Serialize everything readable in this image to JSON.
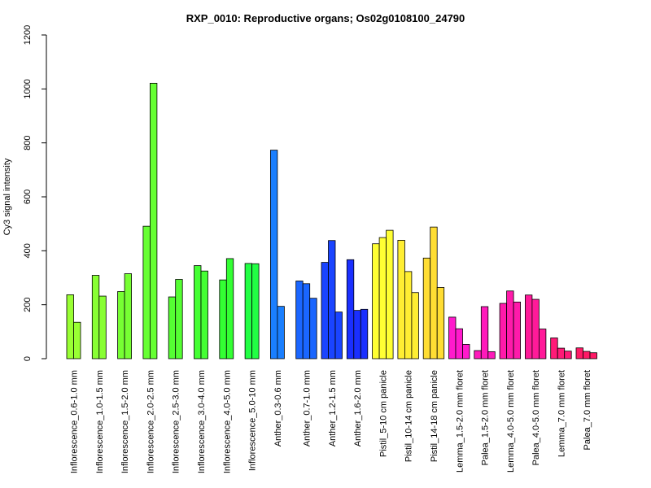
{
  "chart_data": {
    "type": "bar",
    "title": "RXP_0010: Reproductive organs; Os02g0108100_24790",
    "xlabel": "",
    "ylabel": "Cy3 signal intensity",
    "ylim": [
      0,
      1200
    ],
    "yticks": [
      "0",
      "200",
      "400",
      "600",
      "800",
      "1000",
      "1200"
    ],
    "grid": false,
    "legend": "none",
    "groups": [
      {
        "label": "Inflorescence_0.6-1.0 mm",
        "color": "#99ff33",
        "values": [
          237,
          135
        ]
      },
      {
        "label": "Inflorescence_1.0-1.5 mm",
        "color": "#88ff33",
        "values": [
          309,
          232
        ]
      },
      {
        "label": "Inflorescence_1.5-2.0 mm",
        "color": "#77ff33",
        "values": [
          249,
          315
        ]
      },
      {
        "label": "Inflorescence_2.0-2.5 mm",
        "color": "#66ff33",
        "values": [
          491,
          1021
        ]
      },
      {
        "label": "Inflorescence_2.5-3.0 mm",
        "color": "#55ff33",
        "values": [
          229,
          294
        ]
      },
      {
        "label": "Inflorescence_3.0-4.0 mm",
        "color": "#44ff33",
        "values": [
          345,
          325
        ]
      },
      {
        "label": "Inflorescence_4.0-5.0 mm",
        "color": "#33ff33",
        "values": [
          292,
          371
        ]
      },
      {
        "label": "Inflorescence_5.0-10 mm",
        "color": "#22ff44",
        "values": [
          353,
          352
        ]
      },
      {
        "label": "Anther_0.3-0.6 mm",
        "color": "#1a7fff",
        "values": [
          773,
          194
        ]
      },
      {
        "label": "Anther_0.7-1.0 mm",
        "color": "#1a66ff",
        "values": [
          288,
          278,
          224
        ]
      },
      {
        "label": "Anther_1.2-1.5 mm",
        "color": "#1a44ff",
        "values": [
          357,
          438,
          173
        ]
      },
      {
        "label": "Anther_1.6-2.0 mm",
        "color": "#1a2fff",
        "values": [
          367,
          179,
          183
        ]
      },
      {
        "label": "Pistil_5-10 cm panicle",
        "color": "#ffff33",
        "values": [
          426,
          449,
          476
        ]
      },
      {
        "label": "Pistil_10-14 cm panicle",
        "color": "#ffee33",
        "values": [
          439,
          323,
          245
        ]
      },
      {
        "label": "Pistil_14-18 cm panicle",
        "color": "#ffdd33",
        "values": [
          373,
          488,
          264
        ]
      },
      {
        "label": "Lemma_1.5-2.0 mm floret",
        "color": "#ff1acc",
        "values": [
          154,
          111,
          53
        ]
      },
      {
        "label": "Palea_1.5-2.0 mm floret",
        "color": "#ff1abb",
        "values": [
          30,
          193,
          26
        ]
      },
      {
        "label": "Lemma_4.0-5.0 mm floret",
        "color": "#ff1aaa",
        "values": [
          205,
          251,
          210
        ]
      },
      {
        "label": "Palea_4.0-5.0 mm floret",
        "color": "#ff1a99",
        "values": [
          236,
          220,
          110
        ]
      },
      {
        "label": "Lemma_7.0 mm floret",
        "color": "#ff1a77",
        "values": [
          77,
          39,
          28
        ]
      },
      {
        "label": "Palea_7.0 mm floret",
        "color": "#ff1a66",
        "values": [
          40,
          27,
          22
        ]
      }
    ]
  }
}
